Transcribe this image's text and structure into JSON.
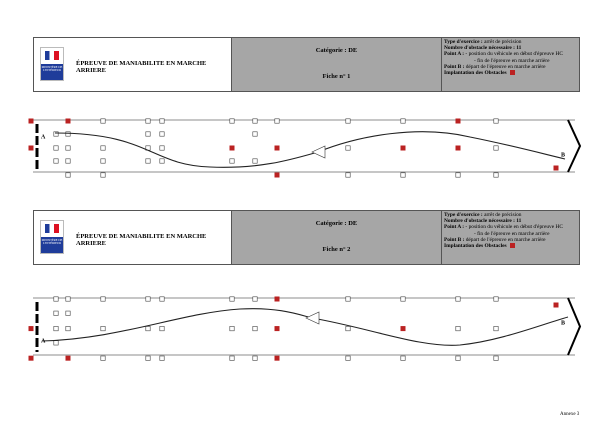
{
  "logo_text": "MINISTÈRE DE L'INTÉRIEUR",
  "footer": "Annexe 3",
  "fiches": [
    {
      "title": "ÉPREUVE DE MANIABILITE EN MARCHE ARRIERE",
      "categorie": "Catégorie : DE",
      "fiche": "Fiche n° 1",
      "info": [
        {
          "b": "Type d'exercice :",
          "t": " arrêt de précision"
        },
        {
          "b": "Nombre d'obstacle nécessaire : 11"
        },
        {
          "b": "Point A :",
          "t": " - position du véhicule en début d'épreuve HC"
        },
        {
          "t": "- fin de l'épreuve en marche arrière"
        },
        {
          "b": "Point B :",
          "t": " départ de l'épreuve en marche arrière"
        },
        {
          "b": "Implantation des Obstacles"
        }
      ],
      "point_a": "A",
      "point_b": "B"
    },
    {
      "title": "ÉPREUVE DE MANIABILITE EN MARCHE ARRIERE",
      "categorie": "Catégorie : DE",
      "fiche": "Fiche n° 2",
      "info": [
        {
          "b": "Type d'exercice :",
          "t": " arrêt de précision"
        },
        {
          "b": "Nombre d'obstacle nécessaire : 11"
        },
        {
          "b": "Point A :",
          "t": " - position du véhicule en début d'épreuve HC"
        },
        {
          "t": "- fin de l'épreuve en marche arrière"
        },
        {
          "b": "Point B :",
          "t": " départ de l'épreuve en marche arrière"
        },
        {
          "b": "Implantation des Obstacles"
        }
      ],
      "point_a": "A",
      "point_b": "B"
    }
  ]
}
